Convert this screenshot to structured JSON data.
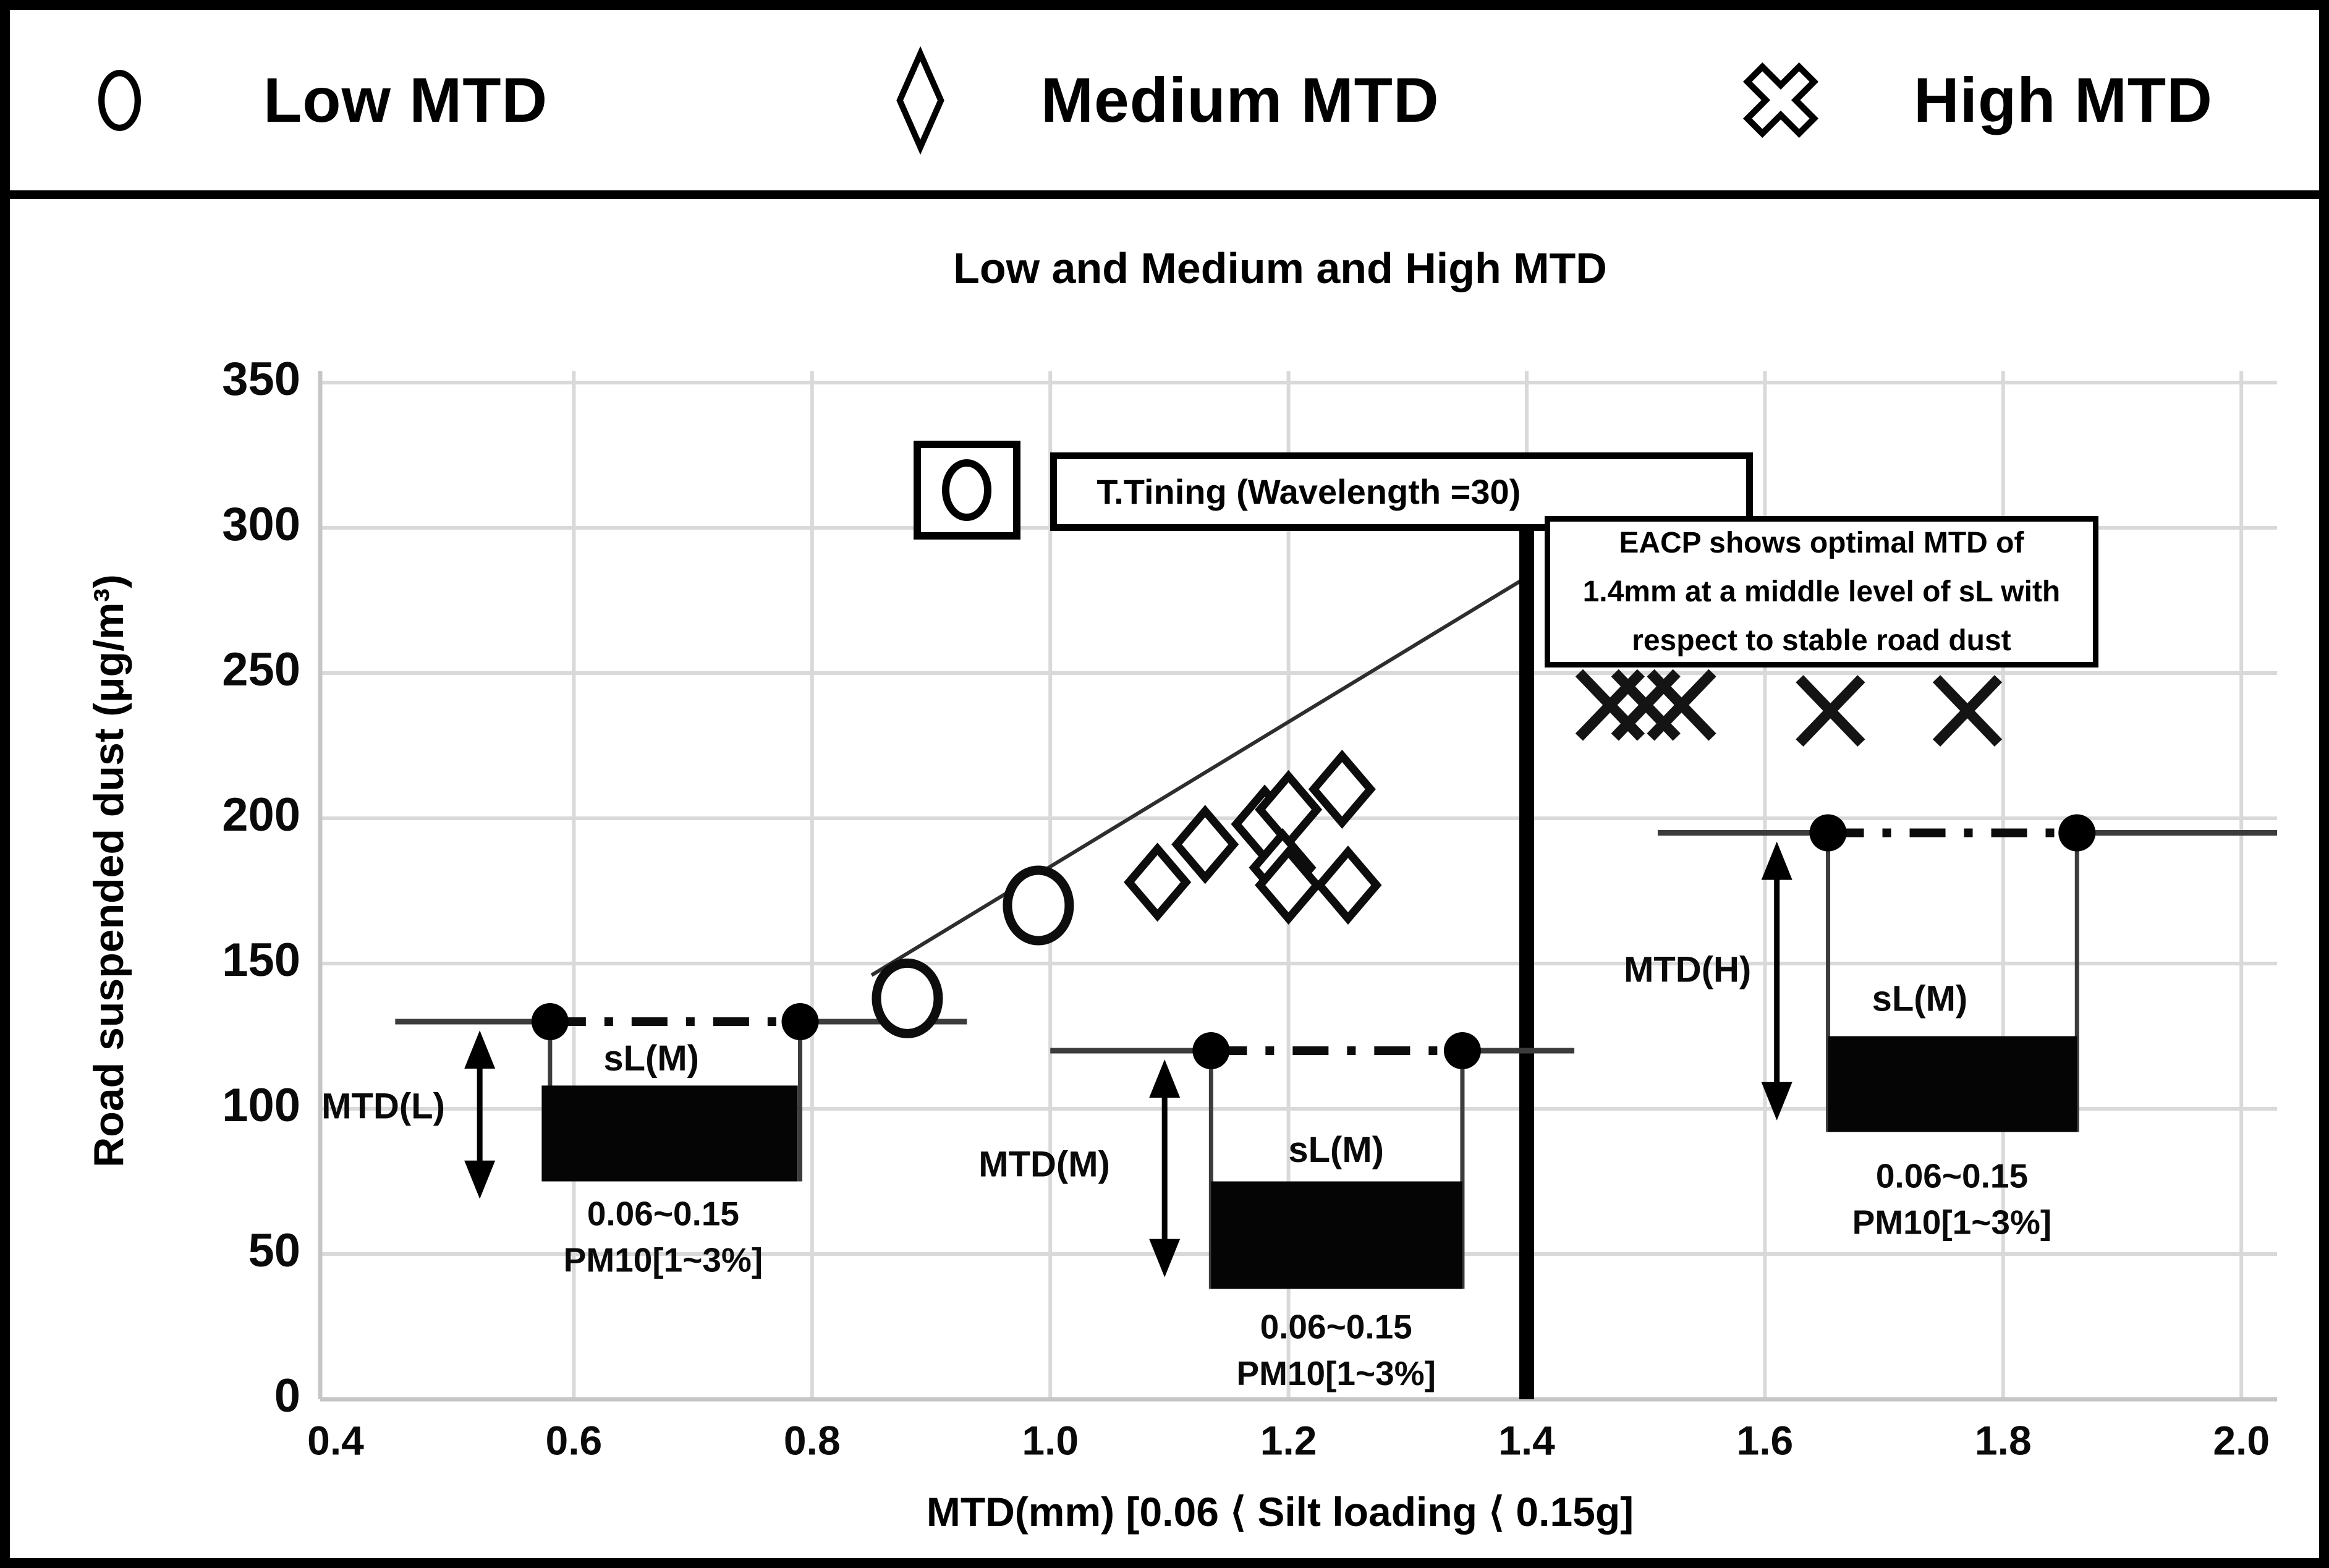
{
  "legend": {
    "items": [
      {
        "label": "Low MTD",
        "marker": "circle"
      },
      {
        "label": "Medium MTD",
        "marker": "diamond"
      },
      {
        "label": "High MTD",
        "marker": "x-cross"
      }
    ]
  },
  "chart_data": {
    "type": "scatter",
    "title": "Low and Medium and High MTD",
    "xlabel": "MTD(mm) [0.06 ⟨ Silt loading ⟨ 0.15g]",
    "ylabel": "Road suspended dust (μg/m³)",
    "xlim": [
      0.4,
      2.0
    ],
    "ylim": [
      0,
      350
    ],
    "grid": true,
    "xticks": [
      "0.4",
      "0.6",
      "0.8",
      "1.0",
      "1.2",
      "1.4",
      "1.6",
      "1.8",
      "2.0"
    ],
    "yticks": [
      "0",
      "50",
      "100",
      "150",
      "200",
      "250",
      "300",
      "350"
    ],
    "series": [
      {
        "name": "Low MTD",
        "marker": "circle",
        "points": [
          [
            0.88,
            138
          ],
          [
            0.99,
            170
          ]
        ]
      },
      {
        "name": "Medium MTD",
        "marker": "diamond",
        "points": [
          [
            1.09,
            178
          ],
          [
            1.13,
            191
          ],
          [
            1.18,
            198
          ],
          [
            1.2,
            203
          ],
          [
            1.195,
            183
          ],
          [
            1.2,
            177
          ],
          [
            1.245,
            210
          ],
          [
            1.25,
            177
          ]
        ]
      },
      {
        "name": "High MTD",
        "marker": "x",
        "points": [
          [
            1.47,
            239
          ],
          [
            1.5,
            239
          ],
          [
            1.53,
            239
          ],
          [
            1.655,
            237
          ],
          [
            1.77,
            237
          ]
        ]
      }
    ],
    "trend_line": {
      "from": [
        0.85,
        146
      ],
      "to": [
        1.4,
        283
      ]
    },
    "optimal_mtd_line": {
      "x": 1.4,
      "y1": 0,
      "y2": 303
    },
    "groups": [
      {
        "name": "MTD(L)",
        "level": 130,
        "line_x": [
          0.45,
          0.93
        ],
        "dot_x": [
          0.58,
          0.79
        ],
        "bar": {
          "x1": 0.573,
          "x2": 0.788,
          "y_bottom": 75,
          "y_top": 108
        },
        "sl_label": "sL(M)",
        "sl_pos": [
          0.665,
          116.5
        ],
        "arrow": {
          "x": 0.521,
          "y_top": 127,
          "y_bottom": 69
        },
        "name_pos": [
          0.44,
          100
        ],
        "range_label": "0.06~0.15",
        "range_pos": [
          0.675,
          63
        ],
        "pm_label": "PM10[1~3%]",
        "pm_pos": [
          0.675,
          47
        ]
      },
      {
        "name": "MTD(M)",
        "level": 120,
        "line_x": [
          1.0,
          1.44
        ],
        "dot_x": [
          1.135,
          1.346
        ],
        "bar": {
          "x1": 1.135,
          "x2": 1.346,
          "y_bottom": 38,
          "y_top": 75
        },
        "sl_label": "sL(M)",
        "sl_pos": [
          1.24,
          85
        ],
        "arrow": {
          "x": 1.096,
          "y_top": 117,
          "y_bottom": 42
        },
        "name_pos": [
          0.995,
          80
        ],
        "range_label": "0.06~0.15",
        "range_pos": [
          1.24,
          24
        ],
        "pm_label": "PM10[1~3%]",
        "pm_pos": [
          1.24,
          8
        ]
      },
      {
        "name": "MTD(H)",
        "level": 195,
        "line_x": [
          1.51,
          2.03
        ],
        "dot_x": [
          1.653,
          1.862
        ],
        "bar": {
          "x1": 1.653,
          "x2": 1.862,
          "y_bottom": 92,
          "y_top": 125
        },
        "sl_label": "sL(M)",
        "sl_pos": [
          1.73,
          137
        ],
        "arrow": {
          "x": 1.61,
          "y_top": 192,
          "y_bottom": 96
        },
        "name_pos": [
          1.535,
          147
        ],
        "range_label": "0.06~0.15",
        "range_pos": [
          1.757,
          76
        ],
        "pm_label": "PM10[1~3%]",
        "pm_pos": [
          1.757,
          60
        ]
      }
    ],
    "callouts": {
      "ttining": {
        "text": "T.Tining (Wavelength =30)",
        "x1": 1.0,
        "x2": 1.59,
        "y1": 299,
        "y2": 326,
        "marker_box": {
          "x1": 0.885,
          "x2": 0.975,
          "y1": 296,
          "y2": 330
        }
      },
      "eacp": {
        "lines": [
          "EACP shows optimal MTD of",
          "1.4mm at a middle level of sL with",
          "respect to stable road dust"
        ],
        "x1": 1.415,
        "x2": 1.88,
        "y1": 252,
        "y2": 304
      }
    }
  }
}
